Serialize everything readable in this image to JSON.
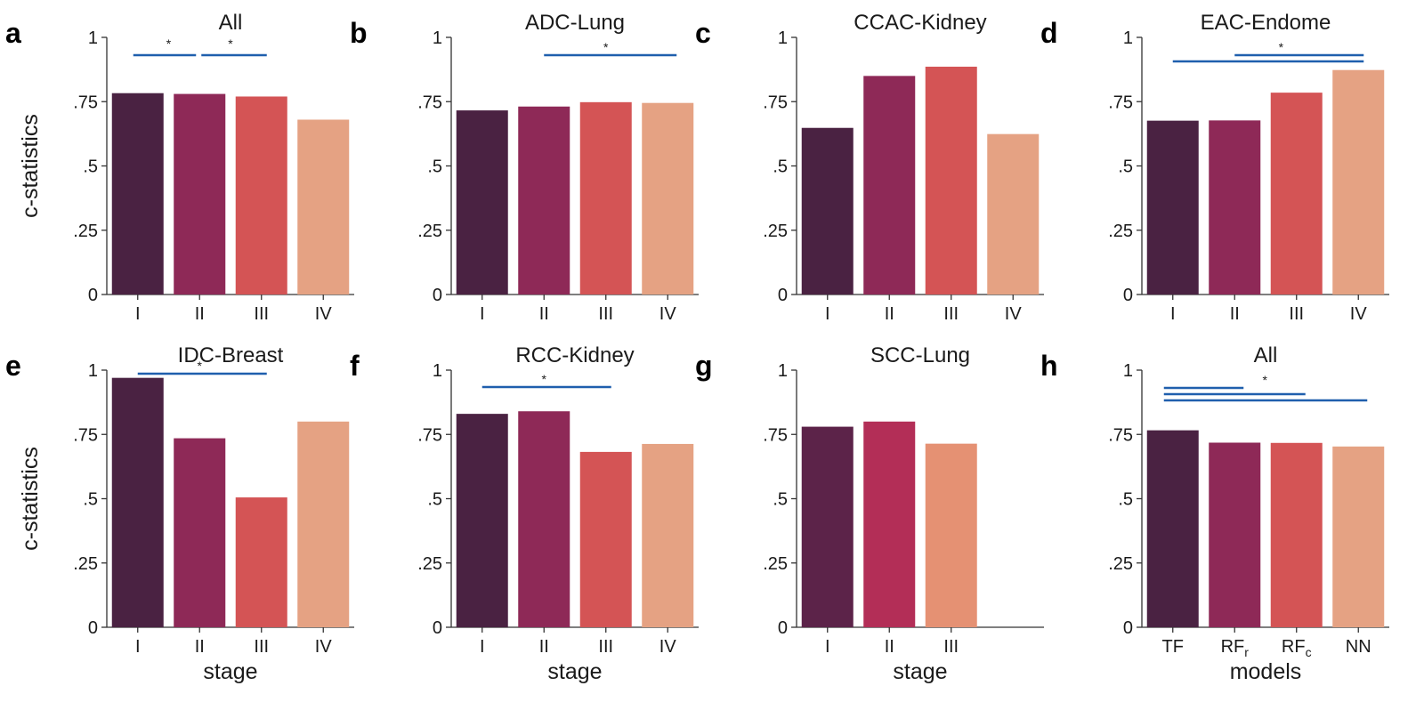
{
  "chart_data": [
    {
      "letter": "a",
      "type": "bar",
      "title": "All",
      "categories": [
        "I",
        "II",
        "III",
        "IV"
      ],
      "values": [
        0.783,
        0.78,
        0.77,
        0.68
      ],
      "colors": [
        "#4a2242",
        "#8e2957",
        "#d45455",
        "#e5a283"
      ],
      "ylabel": "c-statistics",
      "xlabel": "",
      "ylim": [
        0,
        1
      ],
      "yticks": [
        "0",
        ".25",
        ".5",
        ".75",
        "1"
      ],
      "sig": [
        [
          0,
          1
        ],
        [
          1,
          2
        ]
      ]
    },
    {
      "letter": "b",
      "type": "bar",
      "title": "ADC-Lung",
      "categories": [
        "I",
        "II",
        "III",
        "IV"
      ],
      "values": [
        0.716,
        0.731,
        0.748,
        0.745
      ],
      "colors": [
        "#4a2242",
        "#8e2957",
        "#d45455",
        "#e5a283"
      ],
      "ylabel": "",
      "xlabel": "",
      "ylim": [
        0,
        1
      ],
      "yticks": [
        "0",
        ".25",
        ".5",
        ".75",
        "1"
      ],
      "sig": [
        [
          1,
          3
        ]
      ]
    },
    {
      "letter": "c",
      "type": "bar",
      "title": "CCAC-Kidney",
      "categories": [
        "I",
        "II",
        "III",
        "IV"
      ],
      "values": [
        0.648,
        0.85,
        0.886,
        0.624
      ],
      "colors": [
        "#4a2242",
        "#8e2957",
        "#d45455",
        "#e5a283"
      ],
      "ylabel": "",
      "xlabel": "",
      "ylim": [
        0,
        1
      ],
      "yticks": [
        "0",
        ".25",
        ".5",
        ".75",
        "1"
      ],
      "sig": []
    },
    {
      "letter": "d",
      "type": "bar",
      "title": "EAC-Endome",
      "categories": [
        "I",
        "II",
        "III",
        "IV"
      ],
      "values": [
        0.676,
        0.677,
        0.785,
        0.873
      ],
      "colors": [
        "#4a2242",
        "#8e2957",
        "#d45455",
        "#e5a283"
      ],
      "ylabel": "",
      "xlabel": "",
      "ylim": [
        0,
        1
      ],
      "yticks": [
        "0",
        ".25",
        ".5",
        ".75",
        "1"
      ],
      "sig": [
        [
          1,
          3
        ],
        [
          0,
          3
        ]
      ]
    },
    {
      "letter": "e",
      "type": "bar",
      "title": "IDC-Breast",
      "categories": [
        "I",
        "II",
        "III",
        "IV"
      ],
      "values": [
        0.97,
        0.735,
        0.505,
        0.8
      ],
      "colors": [
        "#4a2242",
        "#8e2957",
        "#d45455",
        "#e5a283"
      ],
      "ylabel": "c-statistics",
      "xlabel": "stage",
      "ylim": [
        0,
        1
      ],
      "yticks": [
        "0",
        ".25",
        ".5",
        ".75",
        "1"
      ],
      "sig": [
        [
          0,
          2
        ]
      ]
    },
    {
      "letter": "f",
      "type": "bar",
      "title": "RCC-Kidney",
      "categories": [
        "I",
        "II",
        "III",
        "IV"
      ],
      "values": [
        0.83,
        0.84,
        0.682,
        0.713
      ],
      "colors": [
        "#4a2242",
        "#8e2957",
        "#d45455",
        "#e5a283"
      ],
      "ylabel": "",
      "xlabel": "stage",
      "ylim": [
        0,
        1
      ],
      "yticks": [
        "0",
        ".25",
        ".5",
        ".75",
        "1"
      ],
      "sig": [
        [
          0,
          2
        ]
      ]
    },
    {
      "letter": "g",
      "type": "bar",
      "title": "SCC-Lung",
      "categories": [
        "I",
        "II",
        "III"
      ],
      "values": [
        0.78,
        0.8,
        0.714
      ],
      "colors": [
        "#5c2349",
        "#b32e57",
        "#e59173"
      ],
      "ylabel": "",
      "xlabel": "stage",
      "ylim": [
        0,
        1
      ],
      "yticks": [
        "0",
        ".25",
        ".5",
        ".75",
        "1"
      ],
      "sig": []
    },
    {
      "letter": "h",
      "type": "bar",
      "title": "All",
      "categories": [
        "TF",
        "RFr",
        "RFc",
        "NN"
      ],
      "values": [
        0.766,
        0.718,
        0.717,
        0.703
      ],
      "colors": [
        "#4a2242",
        "#8e2957",
        "#d45455",
        "#e5a283"
      ],
      "ylabel": "",
      "xlabel": "models",
      "ylim": [
        0,
        1
      ],
      "yticks": [
        "0",
        ".25",
        ".5",
        ".75",
        "1"
      ],
      "sig": [
        [
          0,
          1
        ],
        [
          0,
          2
        ],
        [
          0,
          3
        ]
      ]
    }
  ],
  "sig_marker": "*",
  "colors": {
    "sig_line": "#1f5fad",
    "axis": "#333333"
  }
}
